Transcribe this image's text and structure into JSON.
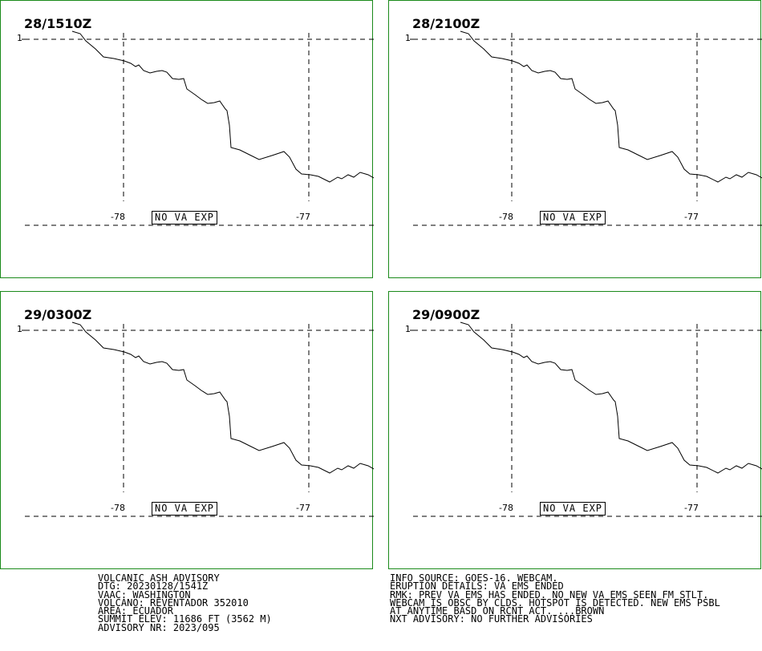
{
  "panels": [
    {
      "time": "28/1510Z",
      "lat_label": "1",
      "lon_labels": [
        "-78",
        "-77"
      ],
      "status": "NO VA EXP"
    },
    {
      "time": "28/2100Z",
      "lat_label": "1",
      "lon_labels": [
        "-78",
        "-77"
      ],
      "status": "NO VA EXP"
    },
    {
      "time": "29/0300Z",
      "lat_label": "1",
      "lon_labels": [
        "-78",
        "-77"
      ],
      "status": "NO VA EXP"
    },
    {
      "time": "29/0900Z",
      "lat_label": "1",
      "lon_labels": [
        "-78",
        "-77"
      ],
      "status": "NO VA EXP"
    }
  ],
  "advisory": {
    "line1": "VOLCANIC ASH ADVISORY",
    "line2": "DTG: 20230128/1541Z",
    "line3": "VAAC: WASHINGTON",
    "line4": "VOLCANO: REVENTADOR 352010",
    "line5": "AREA: ECUADOR",
    "line6": "SUMMIT ELEV: 11686 FT (3562 M)",
    "line7": "ADVISORY NR: 2023/095"
  },
  "details": {
    "line1": "INFO SOURCE: GOES-16. WEBCAM.",
    "line2": "ERUPTION DETAILS: VA EMS ENDED",
    "line3": "RMK: PREV VA EMS HAS ENDED. NO NEW VA EMS SEEN FM STLT.",
    "line4": "WEBCAM IS OBSC BY CLDS. HOTSPOT IS DETECTED. NEW EMS PSBL",
    "line5": "AT ANYTIME BASD ON RCNT ACT. ...BROWN",
    "line6": "NXT ADVISORY: NO FURTHER ADVISORIES"
  }
}
